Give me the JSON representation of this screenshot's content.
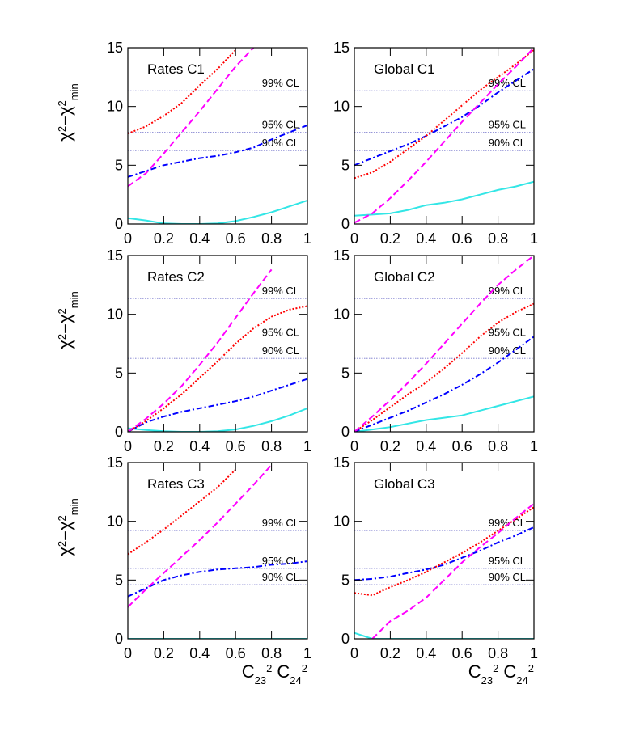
{
  "chart_data": [
    {
      "type": "line",
      "title": "Rates C1",
      "ylabel": [
        "χ",
        "2",
        "−χ",
        "2",
        "min"
      ],
      "x": [
        0,
        0.1,
        0.2,
        0.3,
        0.4,
        0.5,
        0.6,
        0.7,
        0.8,
        0.9,
        1
      ],
      "xlim": [
        0,
        1
      ],
      "ylim": [
        0,
        15
      ],
      "xticks": [
        0,
        0.2,
        0.4,
        0.6,
        0.8,
        1
      ],
      "yticks": [
        0,
        5,
        10,
        15
      ],
      "reference_lines": [
        {
          "label": "99% CL",
          "value": 11.34
        },
        {
          "label": "95% CL",
          "value": 7.81
        },
        {
          "label": "90% CL",
          "value": 6.25
        }
      ],
      "series": [
        {
          "color": "#33e6e6",
          "style": "solid",
          "values": [
            0.5,
            0.3,
            0.05,
            0,
            0,
            0.05,
            0.25,
            0.6,
            1.0,
            1.5,
            2.0
          ]
        },
        {
          "color": "#0000ff",
          "style": "dashdot",
          "values": [
            4.0,
            4.5,
            5.0,
            5.3,
            5.6,
            5.8,
            6.1,
            6.5,
            7.2,
            7.8,
            8.4
          ]
        },
        {
          "color": "#ff0000",
          "style": "dotted",
          "values": [
            7.7,
            8.3,
            9.2,
            10.3,
            11.8,
            13.2,
            14.8,
            null,
            null,
            null,
            null
          ]
        },
        {
          "color": "#ff00ff",
          "style": "dashed",
          "values": [
            3.2,
            4.3,
            6.0,
            7.8,
            9.6,
            11.5,
            13.4,
            15.0,
            null,
            null,
            null
          ]
        }
      ]
    },
    {
      "type": "line",
      "title": "Global C1",
      "x": [
        0,
        0.1,
        0.2,
        0.3,
        0.4,
        0.5,
        0.6,
        0.7,
        0.8,
        0.9,
        1
      ],
      "xlim": [
        0,
        1
      ],
      "ylim": [
        0,
        15
      ],
      "xticks": [
        0,
        0.2,
        0.4,
        0.6,
        0.8,
        1
      ],
      "yticks": [
        0,
        5,
        10,
        15
      ],
      "reference_lines": [
        {
          "label": "99% CL",
          "value": 11.34
        },
        {
          "label": "95% CL",
          "value": 7.81
        },
        {
          "label": "90% CL",
          "value": 6.25
        }
      ],
      "series": [
        {
          "color": "#33e6e6",
          "style": "solid",
          "values": [
            0.7,
            0.8,
            0.9,
            1.2,
            1.6,
            1.8,
            2.1,
            2.5,
            2.9,
            3.2,
            3.6
          ]
        },
        {
          "color": "#0000ff",
          "style": "dashdot",
          "values": [
            5.0,
            5.6,
            6.2,
            6.8,
            7.5,
            8.3,
            9.1,
            10.1,
            11.2,
            12.2,
            13.2
          ]
        },
        {
          "color": "#ff0000",
          "style": "dotted",
          "values": [
            3.9,
            4.4,
            5.3,
            6.4,
            7.5,
            8.8,
            10.1,
            11.4,
            12.5,
            13.6,
            14.8
          ]
        },
        {
          "color": "#ff00ff",
          "style": "dashed",
          "values": [
            0.1,
            0.9,
            2.2,
            3.7,
            5.3,
            7.0,
            8.7,
            10.3,
            11.9,
            13.4,
            15.0
          ]
        }
      ]
    },
    {
      "type": "line",
      "title": "Rates C2",
      "ylabel": [
        "χ",
        "2",
        "−χ",
        "2",
        "min"
      ],
      "x": [
        0,
        0.1,
        0.2,
        0.3,
        0.4,
        0.5,
        0.6,
        0.7,
        0.8,
        0.9,
        1
      ],
      "xlim": [
        0,
        1
      ],
      "ylim": [
        0,
        15
      ],
      "xticks": [
        0,
        0.2,
        0.4,
        0.6,
        0.8,
        1
      ],
      "yticks": [
        0,
        5,
        10,
        15
      ],
      "reference_lines": [
        {
          "label": "99% CL",
          "value": 11.34
        },
        {
          "label": "95% CL",
          "value": 7.81
        },
        {
          "label": "90% CL",
          "value": 6.25
        }
      ],
      "series": [
        {
          "color": "#33e6e6",
          "style": "solid",
          "values": [
            0.3,
            0.15,
            0.05,
            0,
            0,
            0.05,
            0.2,
            0.5,
            0.9,
            1.4,
            2.0
          ]
        },
        {
          "color": "#0000ff",
          "style": "dashdot",
          "values": [
            0,
            0.8,
            1.3,
            1.7,
            2.0,
            2.3,
            2.6,
            3.0,
            3.5,
            4.0,
            4.5
          ]
        },
        {
          "color": "#ff0000",
          "style": "dotted",
          "values": [
            0,
            0.9,
            2.0,
            3.2,
            4.6,
            6.0,
            7.5,
            8.8,
            9.8,
            10.4,
            10.7
          ]
        },
        {
          "color": "#ff00ff",
          "style": "dashed",
          "values": [
            0,
            1.1,
            2.4,
            3.9,
            5.7,
            7.6,
            9.7,
            11.8,
            13.8,
            null,
            null
          ]
        }
      ]
    },
    {
      "type": "line",
      "title": "Global C2",
      "x": [
        0,
        0.1,
        0.2,
        0.3,
        0.4,
        0.5,
        0.6,
        0.7,
        0.8,
        0.9,
        1
      ],
      "xlim": [
        0,
        1
      ],
      "ylim": [
        0,
        15
      ],
      "xticks": [
        0,
        0.2,
        0.4,
        0.6,
        0.8,
        1
      ],
      "yticks": [
        0,
        5,
        10,
        15
      ],
      "reference_lines": [
        {
          "label": "99% CL",
          "value": 11.34
        },
        {
          "label": "95% CL",
          "value": 7.81
        },
        {
          "label": "90% CL",
          "value": 6.25
        }
      ],
      "series": [
        {
          "color": "#33e6e6",
          "style": "solid",
          "values": [
            0,
            0.2,
            0.4,
            0.7,
            1.0,
            1.2,
            1.4,
            1.8,
            2.2,
            2.6,
            3.0
          ]
        },
        {
          "color": "#0000ff",
          "style": "dashdot",
          "values": [
            0,
            0.6,
            1.2,
            1.8,
            2.5,
            3.2,
            4.0,
            4.9,
            5.9,
            7.0,
            8.1
          ]
        },
        {
          "color": "#ff0000",
          "style": "dotted",
          "values": [
            0,
            1.0,
            2.1,
            3.2,
            4.2,
            5.4,
            6.7,
            8.1,
            9.3,
            10.2,
            10.9
          ]
        },
        {
          "color": "#ff00ff",
          "style": "dashed",
          "values": [
            0,
            1.3,
            2.7,
            4.2,
            5.8,
            7.5,
            9.2,
            10.9,
            12.5,
            13.8,
            15.0
          ]
        }
      ]
    },
    {
      "type": "line",
      "title": "Rates C3",
      "ylabel": [
        "χ",
        "2",
        "−χ",
        "2",
        "min"
      ],
      "xlabel": [
        "C",
        "23",
        "2",
        " C",
        "24",
        "2"
      ],
      "x": [
        0,
        0.1,
        0.2,
        0.3,
        0.4,
        0.5,
        0.6,
        0.7,
        0.8,
        0.9,
        1
      ],
      "xlim": [
        0,
        1
      ],
      "ylim": [
        0,
        15
      ],
      "xticks": [
        0,
        0.2,
        0.4,
        0.6,
        0.8,
        1
      ],
      "yticks": [
        0,
        5,
        10,
        15
      ],
      "reference_lines": [
        {
          "label": "99% CL",
          "value": 9.21
        },
        {
          "label": "95% CL",
          "value": 5.99
        },
        {
          "label": "90% CL",
          "value": 4.61
        }
      ],
      "series": [
        {
          "color": "#33e6e6",
          "style": "solid",
          "values": [
            0,
            0,
            0,
            0,
            0,
            0,
            0,
            0,
            0,
            0,
            0
          ]
        },
        {
          "color": "#0000ff",
          "style": "dashdot",
          "values": [
            3.6,
            4.3,
            5.0,
            5.4,
            5.7,
            5.9,
            6.0,
            6.1,
            6.3,
            6.4,
            6.6
          ]
        },
        {
          "color": "#ff0000",
          "style": "dotted",
          "values": [
            7.2,
            8.2,
            9.3,
            10.5,
            11.7,
            12.9,
            14.4,
            null,
            null,
            null,
            null
          ]
        },
        {
          "color": "#ff00ff",
          "style": "dashed",
          "values": [
            2.7,
            4.2,
            5.6,
            7.0,
            8.4,
            9.9,
            11.5,
            13.1,
            14.8,
            null,
            null
          ]
        }
      ]
    },
    {
      "type": "line",
      "title": "Global C3",
      "xlabel": [
        "C",
        "23",
        "2",
        " C",
        "24",
        "2"
      ],
      "x": [
        0,
        0.1,
        0.2,
        0.3,
        0.4,
        0.5,
        0.6,
        0.7,
        0.8,
        0.9,
        1
      ],
      "xlim": [
        0,
        1
      ],
      "ylim": [
        0,
        15
      ],
      "xticks": [
        0,
        0.2,
        0.4,
        0.6,
        0.8,
        1
      ],
      "yticks": [
        0,
        5,
        10,
        15
      ],
      "reference_lines": [
        {
          "label": "99% CL",
          "value": 9.21
        },
        {
          "label": "95% CL",
          "value": 5.99
        },
        {
          "label": "90% CL",
          "value": 4.61
        }
      ],
      "series": [
        {
          "color": "#33e6e6",
          "style": "solid",
          "values": [
            0.5,
            0,
            0,
            0,
            0,
            0,
            0,
            0,
            0,
            0,
            0
          ]
        },
        {
          "color": "#0000ff",
          "style": "dashdot",
          "values": [
            5.0,
            5.1,
            5.3,
            5.6,
            5.9,
            6.3,
            6.9,
            7.5,
            8.2,
            8.8,
            9.5
          ]
        },
        {
          "color": "#ff0000",
          "style": "dotted",
          "values": [
            3.9,
            3.7,
            4.4,
            5.0,
            5.7,
            6.5,
            7.3,
            8.2,
            9.2,
            10.2,
            11.2
          ]
        },
        {
          "color": "#ff00ff",
          "style": "dashed",
          "values": [
            null,
            0,
            1.5,
            2.4,
            3.5,
            5.0,
            6.5,
            7.8,
            9.0,
            10.3,
            11.5
          ]
        }
      ]
    }
  ]
}
